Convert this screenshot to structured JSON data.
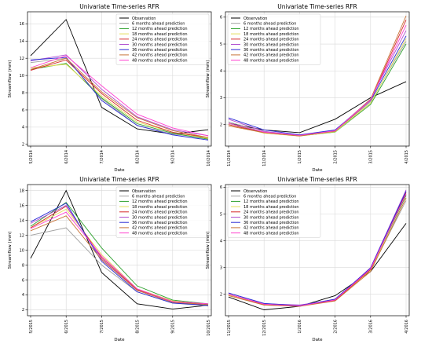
{
  "chart_data": [
    {
      "type": "line",
      "title": "Univariate Time-series RFR",
      "xlabel": "Date",
      "ylabel": "Streamflow (mm)",
      "x": [
        "5/2014",
        "6/2014",
        "7/2014",
        "8/2014",
        "9/2014",
        "10/2014"
      ],
      "ylim": [
        1.8,
        17.4
      ],
      "yticks": [
        2,
        4,
        6,
        8,
        10,
        12,
        14,
        16
      ],
      "grid": true,
      "legend_position": "top-right",
      "series": [
        {
          "name": "Observation",
          "color": "#000000",
          "values": [
            12.3,
            16.5,
            6.3,
            3.8,
            3.2,
            3.7
          ]
        },
        {
          "name": "6 months ahead prediction",
          "color": "#a0a0a0",
          "values": [
            11.5,
            12.0,
            7.3,
            4.2,
            3.2,
            2.7
          ]
        },
        {
          "name": "12 months ahead prediction",
          "color": "#2ca02c",
          "values": [
            10.7,
            11.4,
            7.4,
            4.4,
            3.3,
            2.6
          ]
        },
        {
          "name": "18 months ahead prediction",
          "color": "#e3e05a",
          "values": [
            10.9,
            11.3,
            7.6,
            4.6,
            3.4,
            2.7
          ]
        },
        {
          "name": "24 months ahead prediction",
          "color": "#d62728",
          "values": [
            10.6,
            11.8,
            7.9,
            4.8,
            3.4,
            2.8
          ]
        },
        {
          "name": "30 months ahead prediction",
          "color": "#b04fd0",
          "values": [
            11.7,
            12.4,
            8.4,
            5.2,
            3.7,
            3.0
          ]
        },
        {
          "name": "36 months ahead prediction",
          "color": "#2a2ad6",
          "values": [
            11.8,
            12.1,
            7.1,
            4.2,
            3.1,
            2.5
          ]
        },
        {
          "name": "42 months ahead prediction",
          "color": "#c8743a",
          "values": [
            10.7,
            12.0,
            8.1,
            5.1,
            3.6,
            2.8
          ]
        },
        {
          "name": "48 months ahead prediction",
          "color": "#ff40d0",
          "values": [
            10.9,
            12.3,
            8.8,
            5.5,
            3.9,
            3.0
          ]
        }
      ]
    },
    {
      "type": "line",
      "title": "Univariate Time-series RFR",
      "xlabel": "Date",
      "ylabel": "Streamflow (mm)",
      "x": [
        "11/2014",
        "12/2014",
        "1/2015",
        "2/2015",
        "3/2015",
        "4/2015"
      ],
      "ylim": [
        1.2,
        6.2
      ],
      "yticks": [
        2,
        3,
        4,
        5,
        6
      ],
      "grid": true,
      "legend_position": "top-left",
      "series": [
        {
          "name": "Observation",
          "color": "#000000",
          "values": [
            2.05,
            1.8,
            1.7,
            2.2,
            3.0,
            3.6
          ]
        },
        {
          "name": "6 months ahead prediction",
          "color": "#a0a0a0",
          "values": [
            2.1,
            1.72,
            1.6,
            1.75,
            2.85,
            5.1
          ]
        },
        {
          "name": "12 months ahead prediction",
          "color": "#2ca02c",
          "values": [
            2.05,
            1.7,
            1.58,
            1.72,
            2.75,
            5.0
          ]
        },
        {
          "name": "18 months ahead prediction",
          "color": "#e3e05a",
          "values": [
            2.0,
            1.68,
            1.57,
            1.73,
            2.8,
            5.2
          ]
        },
        {
          "name": "24 months ahead prediction",
          "color": "#d62728",
          "values": [
            2.0,
            1.7,
            1.58,
            1.76,
            2.9,
            5.9
          ]
        },
        {
          "name": "30 months ahead prediction",
          "color": "#b04fd0",
          "values": [
            2.2,
            1.75,
            1.6,
            1.78,
            2.95,
            5.5
          ]
        },
        {
          "name": "36 months ahead prediction",
          "color": "#2a2ad6",
          "values": [
            2.25,
            1.8,
            1.62,
            1.8,
            2.9,
            5.3
          ]
        },
        {
          "name": "42 months ahead prediction",
          "color": "#c8743a",
          "values": [
            1.95,
            1.7,
            1.58,
            1.75,
            2.95,
            6.05
          ]
        },
        {
          "name": "48 months ahead prediction",
          "color": "#ff40d0",
          "values": [
            2.05,
            1.72,
            1.6,
            1.77,
            2.92,
            5.7
          ]
        }
      ]
    },
    {
      "type": "line",
      "title": "Univariate Time-series RFR",
      "xlabel": "Date",
      "ylabel": "Streamflow (mm)",
      "x": [
        "5/2015",
        "6/2015",
        "7/2015",
        "8/2015",
        "9/2015",
        "10/2015"
      ],
      "ylim": [
        1.2,
        18.8
      ],
      "yticks": [
        2,
        4,
        6,
        8,
        10,
        12,
        14,
        16,
        18
      ],
      "grid": true,
      "legend_position": "top-right",
      "series": [
        {
          "name": "Observation",
          "color": "#000000",
          "values": [
            8.9,
            18.0,
            7.0,
            2.8,
            2.1,
            2.6
          ]
        },
        {
          "name": "6 months ahead prediction",
          "color": "#a0a0a0",
          "values": [
            12.0,
            13.0,
            8.0,
            4.4,
            2.9,
            2.5
          ]
        },
        {
          "name": "12 months ahead prediction",
          "color": "#2ca02c",
          "values": [
            13.2,
            16.4,
            10.3,
            5.2,
            3.3,
            2.8
          ]
        },
        {
          "name": "18 months ahead prediction",
          "color": "#e3e05a",
          "values": [
            13.0,
            15.5,
            9.4,
            4.8,
            3.2,
            2.7
          ]
        },
        {
          "name": "24 months ahead prediction",
          "color": "#d62728",
          "values": [
            13.0,
            15.9,
            9.0,
            4.7,
            3.1,
            2.7
          ]
        },
        {
          "name": "30 months ahead prediction",
          "color": "#b04fd0",
          "values": [
            13.6,
            16.0,
            8.8,
            4.6,
            3.0,
            2.6
          ]
        },
        {
          "name": "36 months ahead prediction",
          "color": "#2a2ad6",
          "values": [
            13.8,
            16.3,
            8.5,
            4.4,
            2.9,
            2.6
          ]
        },
        {
          "name": "42 months ahead prediction",
          "color": "#c8743a",
          "values": [
            12.6,
            14.6,
            8.7,
            4.6,
            3.0,
            2.7
          ]
        },
        {
          "name": "48 months ahead prediction",
          "color": "#ff40d0",
          "values": [
            12.9,
            15.1,
            9.2,
            4.8,
            3.1,
            2.8
          ]
        }
      ]
    },
    {
      "type": "line",
      "title": "Univariate Time-series RFR",
      "xlabel": "Date",
      "ylabel": "Streamflow (mm)",
      "x": [
        "11/2015",
        "12/2015",
        "1/2016",
        "2/2016",
        "3/2016",
        "4/2016"
      ],
      "ylim": [
        1.2,
        6.1
      ],
      "yticks": [
        2,
        3,
        4,
        5,
        6
      ],
      "grid": true,
      "legend_position": "top-left",
      "series": [
        {
          "name": "Observation",
          "color": "#000000",
          "values": [
            1.9,
            1.42,
            1.55,
            1.95,
            2.85,
            4.65
          ]
        },
        {
          "name": "6 months ahead prediction",
          "color": "#a0a0a0",
          "values": [
            2.0,
            1.6,
            1.55,
            1.8,
            2.9,
            5.5
          ]
        },
        {
          "name": "12 months ahead prediction",
          "color": "#2ca02c",
          "values": [
            2.0,
            1.62,
            1.58,
            1.78,
            2.95,
            5.7
          ]
        },
        {
          "name": "18 months ahead prediction",
          "color": "#e3e05a",
          "values": [
            1.98,
            1.6,
            1.56,
            1.76,
            2.9,
            5.6
          ]
        },
        {
          "name": "24 months ahead prediction",
          "color": "#d62728",
          "values": [
            2.0,
            1.62,
            1.57,
            1.77,
            2.92,
            5.8
          ]
        },
        {
          "name": "30 months ahead prediction",
          "color": "#b04fd0",
          "values": [
            2.05,
            1.65,
            1.6,
            1.8,
            3.0,
            5.9
          ]
        },
        {
          "name": "36 months ahead prediction",
          "color": "#2a2ad6",
          "values": [
            2.05,
            1.66,
            1.58,
            1.82,
            2.98,
            5.85
          ]
        },
        {
          "name": "42 months ahead prediction",
          "color": "#c8743a",
          "values": [
            1.95,
            1.6,
            1.55,
            1.75,
            2.85,
            5.6
          ]
        },
        {
          "name": "48 months ahead prediction",
          "color": "#ff40d0",
          "values": [
            2.0,
            1.63,
            1.57,
            1.79,
            2.95,
            5.75
          ]
        }
      ]
    }
  ]
}
